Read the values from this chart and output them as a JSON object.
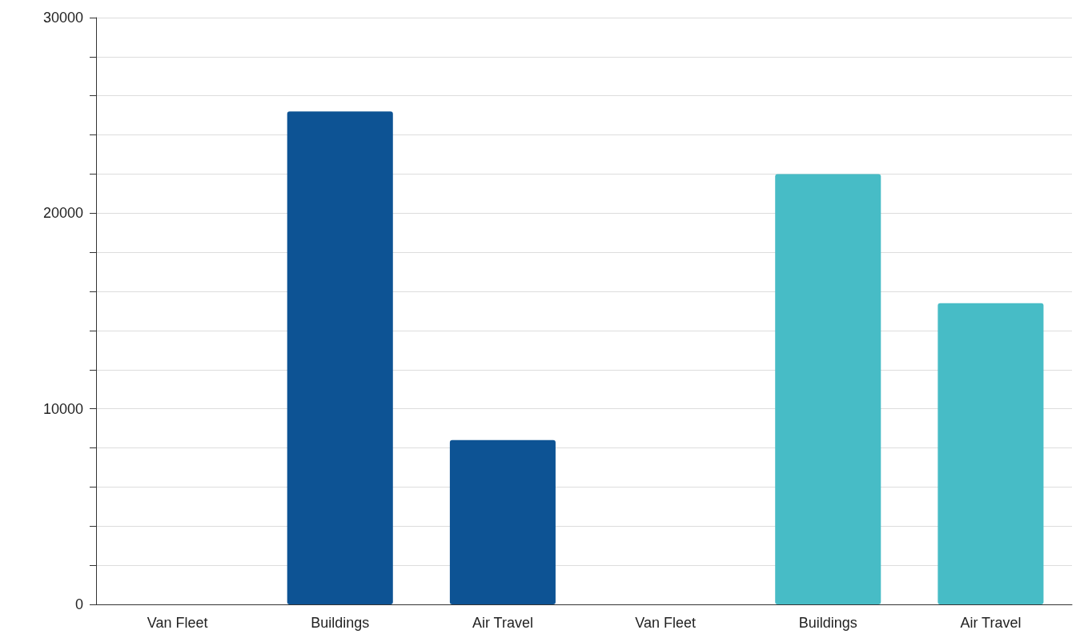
{
  "chart_data": {
    "type": "bar",
    "categories": [
      "Van Fleet",
      "Buildings",
      "Air Travel",
      "Van Fleet",
      "Buildings",
      "Air Travel"
    ],
    "values": [
      0,
      25200,
      8400,
      0,
      22000,
      15400
    ],
    "colors": [
      "#0d5394",
      "#0d5394",
      "#0d5394",
      "#47bcc6",
      "#47bcc6",
      "#47bcc6"
    ],
    "ylim": [
      0,
      30000
    ],
    "yticks": [
      0,
      {
        "value": 2000,
        "label": null
      },
      {
        "value": 4000,
        "label": null
      },
      {
        "value": 6000,
        "label": null
      },
      {
        "value": 8000,
        "label": null
      },
      10000,
      {
        "value": 12000,
        "label": null
      },
      {
        "value": 14000,
        "label": null
      },
      {
        "value": 16000,
        "label": null
      },
      {
        "value": 18000,
        "label": null
      },
      20000,
      {
        "value": 22000,
        "label": null
      },
      {
        "value": 24000,
        "label": null
      },
      {
        "value": 26000,
        "label": null
      },
      {
        "value": 28000,
        "label": null
      },
      30000
    ],
    "grid": "y"
  }
}
